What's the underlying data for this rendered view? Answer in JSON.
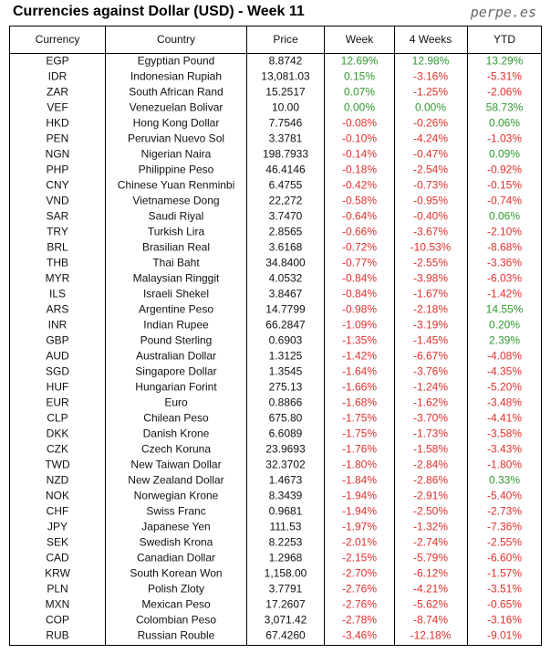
{
  "header": {
    "title": "Currencies against Dollar (USD) - Week 11",
    "source": "perpe.es"
  },
  "colors": {
    "positive": "#2f9a2f",
    "negative": "#e0302c",
    "text": "#111111"
  },
  "table": {
    "columns": [
      "Currency",
      "Country",
      "Price",
      "Week",
      "4 Weeks",
      "YTD"
    ],
    "rows": [
      [
        "EGP",
        "Egyptian Pound",
        "8.8742",
        "12.69%",
        "12.98%",
        "13.29%"
      ],
      [
        "IDR",
        "Indonesian Rupiah",
        "13,081.03",
        "0.15%",
        "-3.16%",
        "-5.31%"
      ],
      [
        "ZAR",
        "South African Rand",
        "15.2517",
        "0.07%",
        "-1.25%",
        "-2.06%"
      ],
      [
        "VEF",
        "Venezuelan Bolivar",
        "10.00",
        "0.00%",
        "0.00%",
        "58.73%"
      ],
      [
        "HKD",
        "Hong Kong Dollar",
        "7.7546",
        "-0.08%",
        "-0.26%",
        "0.06%"
      ],
      [
        "PEN",
        "Peruvian Nuevo Sol",
        "3.3781",
        "-0.10%",
        "-4.24%",
        "-1.03%"
      ],
      [
        "NGN",
        "Nigerian Naira",
        "198.7933",
        "-0.14%",
        "-0.47%",
        "0.09%"
      ],
      [
        "PHP",
        "Philippine Peso",
        "46.4146",
        "-0.18%",
        "-2.54%",
        "-0.92%"
      ],
      [
        "CNY",
        "Chinese Yuan Renminbi",
        "6.4755",
        "-0.42%",
        "-0.73%",
        "-0.15%"
      ],
      [
        "VND",
        "Vietnamese Dong",
        "22,272",
        "-0.58%",
        "-0.95%",
        "-0.74%"
      ],
      [
        "SAR",
        "Saudi Riyal",
        "3.7470",
        "-0.64%",
        "-0.40%",
        "0.06%"
      ],
      [
        "TRY",
        "Turkish Lira",
        "2.8565",
        "-0.66%",
        "-3.67%",
        "-2.10%"
      ],
      [
        "BRL",
        "Brasilian Real",
        "3.6168",
        "-0.72%",
        "-10.53%",
        "-8.68%"
      ],
      [
        "THB",
        "Thai Baht",
        "34.8400",
        "-0.77%",
        "-2.55%",
        "-3.36%"
      ],
      [
        "MYR",
        "Malaysian Ringgit",
        "4.0532",
        "-0.84%",
        "-3.98%",
        "-6.03%"
      ],
      [
        "ILS",
        "Israeli Shekel",
        "3.8467",
        "-0.84%",
        "-1.67%",
        "-1.42%"
      ],
      [
        "ARS",
        "Argentine Peso",
        "14.7799",
        "-0.98%",
        "-2.18%",
        "14.55%"
      ],
      [
        "INR",
        "Indian Rupee",
        "66.2847",
        "-1.09%",
        "-3.19%",
        "0.20%"
      ],
      [
        "GBP",
        "Pound Sterling",
        "0.6903",
        "-1.35%",
        "-1.45%",
        "2.39%"
      ],
      [
        "AUD",
        "Australian Dollar",
        "1.3125",
        "-1.42%",
        "-6.67%",
        "-4.08%"
      ],
      [
        "SGD",
        "Singapore Dollar",
        "1.3545",
        "-1.64%",
        "-3.76%",
        "-4.35%"
      ],
      [
        "HUF",
        "Hungarian Forint",
        "275.13",
        "-1.66%",
        "-1.24%",
        "-5.20%"
      ],
      [
        "EUR",
        "Euro",
        "0.8866",
        "-1.68%",
        "-1.62%",
        "-3.48%"
      ],
      [
        "CLP",
        "Chilean Peso",
        "675.80",
        "-1.75%",
        "-3.70%",
        "-4.41%"
      ],
      [
        "DKK",
        "Danish Krone",
        "6.6089",
        "-1.75%",
        "-1.73%",
        "-3.58%"
      ],
      [
        "CZK",
        "Czech Koruna",
        "23.9693",
        "-1.76%",
        "-1.58%",
        "-3.43%"
      ],
      [
        "TWD",
        "New Taiwan Dollar",
        "32.3702",
        "-1.80%",
        "-2.84%",
        "-1.80%"
      ],
      [
        "NZD",
        "New Zealand Dollar",
        "1.4673",
        "-1.84%",
        "-2.86%",
        "0.33%"
      ],
      [
        "NOK",
        "Norwegian Krone",
        "8.3439",
        "-1.94%",
        "-2.91%",
        "-5.40%"
      ],
      [
        "CHF",
        "Swiss Franc",
        "0.9681",
        "-1.94%",
        "-2.50%",
        "-2.73%"
      ],
      [
        "JPY",
        "Japanese Yen",
        "111.53",
        "-1.97%",
        "-1.32%",
        "-7.36%"
      ],
      [
        "SEK",
        "Swedish Krona",
        "8.2253",
        "-2.01%",
        "-2.74%",
        "-2.55%"
      ],
      [
        "CAD",
        "Canadian Dollar",
        "1.2968",
        "-2.15%",
        "-5.79%",
        "-6.60%"
      ],
      [
        "KRW",
        "South Korean Won",
        "1,158.00",
        "-2.70%",
        "-6.12%",
        "-1.57%"
      ],
      [
        "PLN",
        "Polish Zloty",
        "3.7791",
        "-2.76%",
        "-4.21%",
        "-3.51%"
      ],
      [
        "MXN",
        "Mexican Peso",
        "17.2607",
        "-2.76%",
        "-5.62%",
        "-0.65%"
      ],
      [
        "COP",
        "Colombian Peso",
        "3,071.42",
        "-2.78%",
        "-8.74%",
        "-3.16%"
      ],
      [
        "RUB",
        "Russian Rouble",
        "67.4260",
        "-3.46%",
        "-12.18%",
        "-9.01%"
      ]
    ]
  }
}
